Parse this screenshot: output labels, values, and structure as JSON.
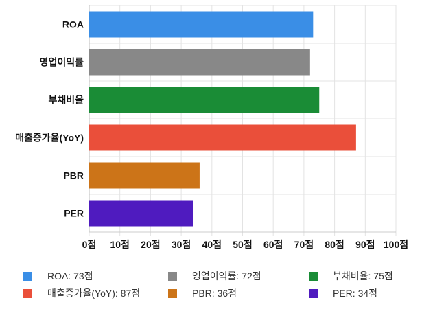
{
  "chart_data": {
    "type": "bar",
    "orientation": "horizontal",
    "categories": [
      "ROA",
      "영업이익률",
      "부채비율",
      "매출증가율(YoY)",
      "PBR",
      "PER"
    ],
    "values": [
      73,
      72,
      75,
      87,
      36,
      34
    ],
    "colors": [
      "#3a8ee6",
      "#888888",
      "#1a8c36",
      "#ea4f3a",
      "#cc7418",
      "#4f1bbf"
    ],
    "xlim": [
      0,
      100
    ],
    "xticks": [
      0,
      10,
      20,
      30,
      40,
      50,
      60,
      70,
      80,
      90,
      100
    ],
    "tick_suffix": "점",
    "grid": true,
    "legend": {
      "placement": "bottom",
      "entries": [
        "ROA: 73점",
        "영업이익률: 72점",
        "부채비율: 75점",
        "매출증가율(YoY): 87점",
        "PBR: 36점",
        "PER: 34점"
      ]
    }
  }
}
